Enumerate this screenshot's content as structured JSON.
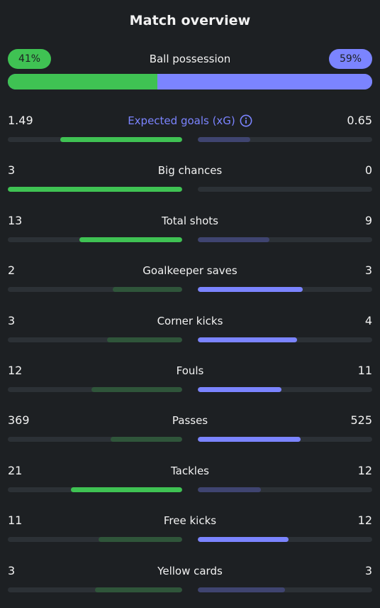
{
  "header": {
    "title": "Match overview"
  },
  "possession": {
    "label": "Ball possession",
    "home_label": "41%",
    "away_label": "59%",
    "home_fraction": 0.41,
    "away_fraction": 0.59
  },
  "colors": {
    "background": "#1d2023",
    "home_strong": "#3fc253",
    "home_weak": "#2f553a",
    "away_strong": "#7b84ff",
    "away_weak": "#3f4470",
    "track": "#2c3136"
  },
  "stats": [
    {
      "label": "Expected goals (xG)",
      "home": "1.49",
      "away": "0.65",
      "home_fraction": 0.7,
      "away_fraction": 0.3,
      "home_leads": true,
      "accent": true,
      "icon": "info-icon"
    },
    {
      "label": "Big chances",
      "home": "3",
      "away": "0",
      "home_fraction": 1.0,
      "away_fraction": 0.0,
      "home_leads": true
    },
    {
      "label": "Total shots",
      "home": "13",
      "away": "9",
      "home_fraction": 0.59,
      "away_fraction": 0.41,
      "home_leads": true
    },
    {
      "label": "Goalkeeper saves",
      "home": "2",
      "away": "3",
      "home_fraction": 0.4,
      "away_fraction": 0.6,
      "home_leads": false
    },
    {
      "label": "Corner kicks",
      "home": "3",
      "away": "4",
      "home_fraction": 0.43,
      "away_fraction": 0.57,
      "home_leads": false
    },
    {
      "label": "Fouls",
      "home": "12",
      "away": "11",
      "home_fraction": 0.52,
      "away_fraction": 0.48,
      "home_leads": false
    },
    {
      "label": "Passes",
      "home": "369",
      "away": "525",
      "home_fraction": 0.41,
      "away_fraction": 0.59,
      "home_leads": false
    },
    {
      "label": "Tackles",
      "home": "21",
      "away": "12",
      "home_fraction": 0.64,
      "away_fraction": 0.36,
      "home_leads": true
    },
    {
      "label": "Free kicks",
      "home": "11",
      "away": "12",
      "home_fraction": 0.48,
      "away_fraction": 0.52,
      "home_leads": false
    },
    {
      "label": "Yellow cards",
      "home": "3",
      "away": "3",
      "home_fraction": 0.5,
      "away_fraction": 0.5,
      "home_leads": false,
      "tie": true
    }
  ]
}
